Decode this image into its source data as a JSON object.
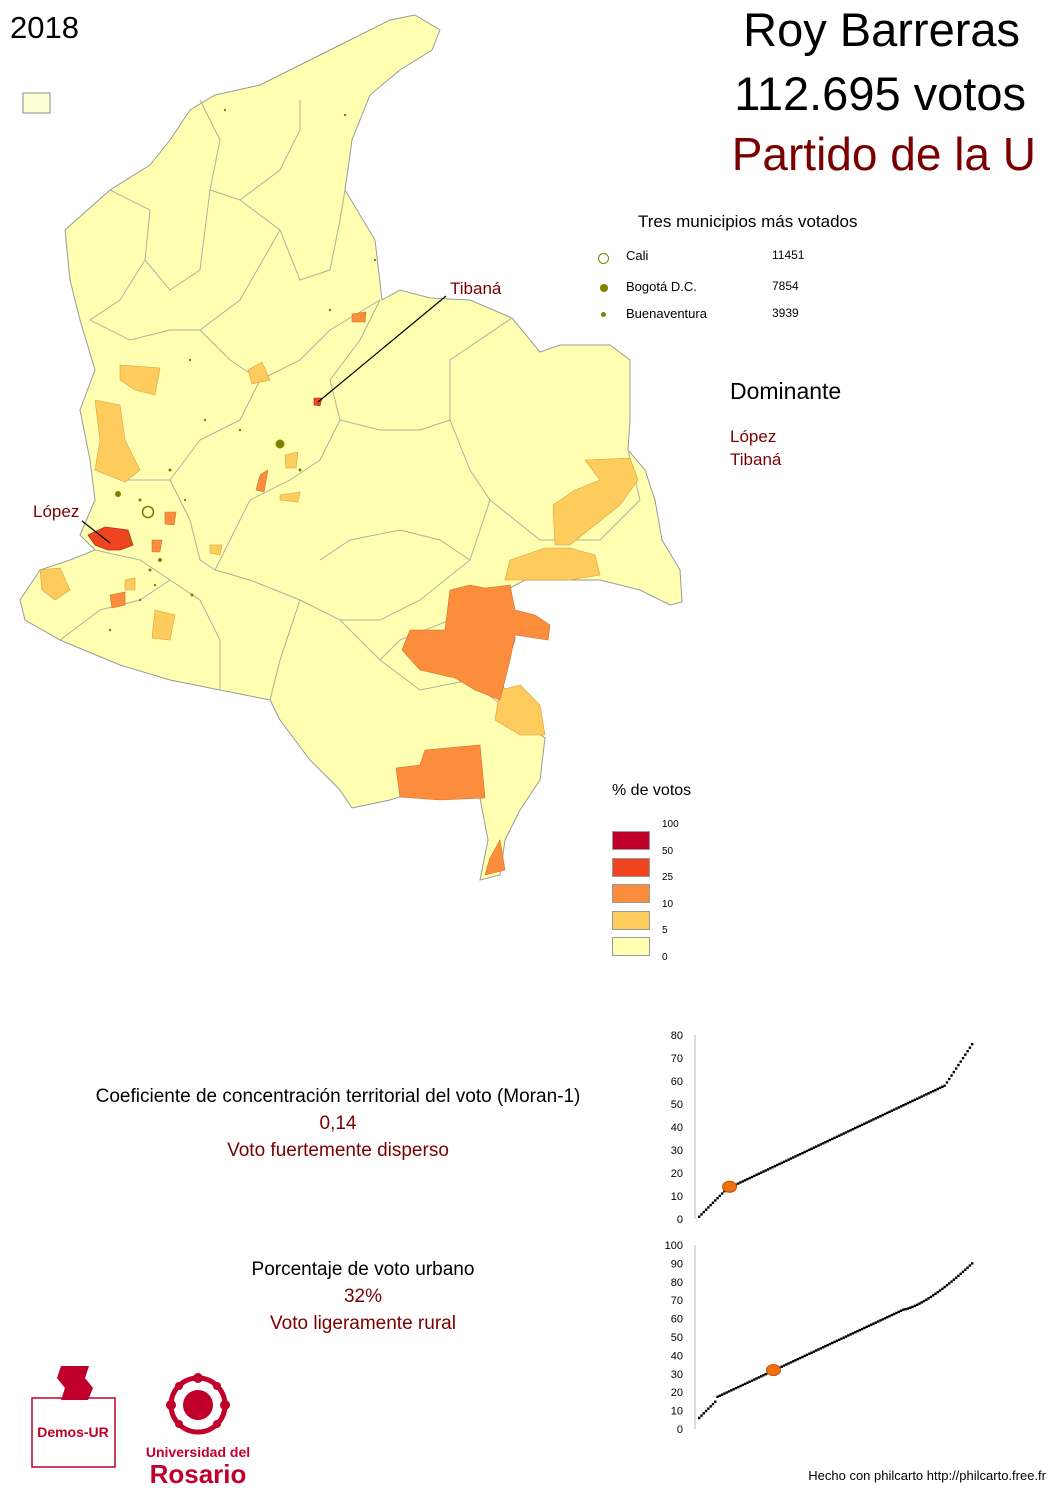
{
  "header": {
    "year": "2018",
    "candidate": "Roy Barreras",
    "votes": "112.695 votos",
    "party": "Partido de la U"
  },
  "top_municipalities": {
    "title": "Tres municipios más votados",
    "items": [
      {
        "name": "Cali",
        "votes": "11451"
      },
      {
        "name": "Bogotá D.C.",
        "votes": "7854"
      },
      {
        "name": "Buenaventura",
        "votes": "3939"
      }
    ]
  },
  "dominant": {
    "title": "Dominante",
    "items": [
      "López",
      "Tibaná"
    ]
  },
  "map_labels": {
    "lopez": "López",
    "tibana": "Tibaná"
  },
  "legend": {
    "title": "% de votos",
    "breaks": [
      "100",
      "50",
      "25",
      "10",
      "5",
      "0"
    ],
    "colors": [
      "#c0002a",
      "#f0431f",
      "#fc8d3c",
      "#fecc5c",
      "#ffffb2"
    ]
  },
  "moran": {
    "label": "Coeficiente de concentración territorial del voto (Moran-1)",
    "value": "0,14",
    "interpretation": "Voto fuertemente disperso"
  },
  "urban": {
    "label": "Porcentaje de voto urbano",
    "value": "32%",
    "interpretation": "Voto ligeramente rural"
  },
  "chart_data": [
    {
      "type": "scatter",
      "name": "moran_distribution",
      "ylim": [
        0,
        80
      ],
      "yticks": [
        "0",
        "10",
        "20",
        "30",
        "40",
        "50",
        "60",
        "70",
        "80"
      ],
      "highlight": 0.14,
      "highlight_value": 14
    },
    {
      "type": "scatter",
      "name": "urban_distribution",
      "ylim": [
        0,
        100
      ],
      "yticks": [
        "0",
        "10",
        "20",
        "30",
        "40",
        "50",
        "60",
        "70",
        "80",
        "90",
        "100"
      ],
      "highlight": 32,
      "highlight_value": 32
    }
  ],
  "logos": {
    "demos": "Demos-UR",
    "rosario_line1": "Universidad del",
    "rosario_line2": "Rosario"
  },
  "credit": "Hecho con philcarto http://philcarto.free.fr"
}
